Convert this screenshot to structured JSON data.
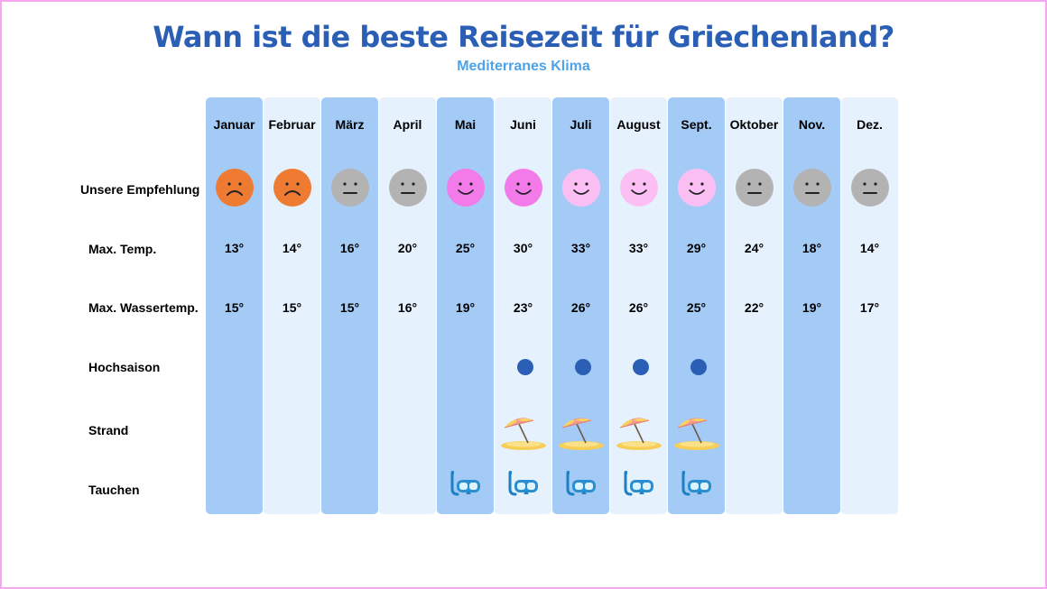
{
  "title": "Wann ist die beste Reisezeit für Griechenland?",
  "subtitle": "Mediterranes Klima",
  "colors": {
    "title": "#2b5fb5",
    "subtitle": "#4ea3e8",
    "column_dark": "#a3cbf6",
    "column_light": "#e5f1fd",
    "face_sad": "#ef7a32",
    "face_neutral": "#b3b3b3",
    "face_good": "#f27ae9",
    "face_best": "#fcbff4",
    "hochsaison_dot": "#2b5fb5",
    "frame": "#f6a8ee"
  },
  "row_labels": {
    "empfehlung": "Unsere Empfehlung",
    "max_temp": "Max. Temp.",
    "wassertemp": "Max. Wassertemp.",
    "hochsaison": "Hochsaison",
    "strand": "Strand",
    "tauchen": "Tauchen"
  },
  "chart_data": {
    "type": "table",
    "months": [
      "Januar",
      "Februar",
      "März",
      "April",
      "Mai",
      "Juni",
      "Juli",
      "August",
      "Sept.",
      "Oktober",
      "Nov.",
      "Dez."
    ],
    "column_shading": [
      "dark",
      "light",
      "dark",
      "light",
      "dark",
      "light",
      "dark",
      "light",
      "dark",
      "light",
      "dark",
      "light"
    ],
    "max_temp": [
      "13°",
      "14°",
      "16°",
      "20°",
      "25°",
      "30°",
      "33°",
      "33°",
      "29°",
      "24°",
      "18°",
      "14°"
    ],
    "max_wassertemp": [
      "15°",
      "15°",
      "15°",
      "16°",
      "19°",
      "23°",
      "26°",
      "26°",
      "25°",
      "22°",
      "19°",
      "17°"
    ],
    "empfehlung": [
      "sad",
      "sad",
      "neutral",
      "neutral",
      "good",
      "good",
      "best",
      "best",
      "best",
      "neutral",
      "neutral",
      "neutral"
    ],
    "hochsaison": [
      false,
      false,
      false,
      false,
      false,
      true,
      true,
      true,
      true,
      false,
      false,
      false
    ],
    "strand": [
      false,
      false,
      false,
      false,
      false,
      true,
      true,
      true,
      true,
      false,
      false,
      false
    ],
    "tauchen": [
      false,
      false,
      false,
      false,
      true,
      true,
      true,
      true,
      true,
      false,
      false,
      false
    ],
    "icons": {
      "empfehlung": "smiley-face-icon",
      "hochsaison": "dot-icon",
      "strand": "beach-umbrella-icon",
      "tauchen": "diving-mask-icon"
    }
  }
}
